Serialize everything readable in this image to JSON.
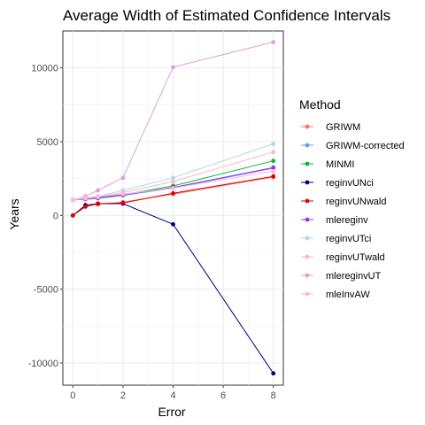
{
  "chart_data": {
    "type": "line",
    "title": "Average Width of Estimated Confidence Intervals",
    "xlabel": "Error",
    "ylabel": "Years",
    "xlim": [
      -0.4,
      8.4
    ],
    "ylim": [
      -11500,
      12500
    ],
    "xticks": [
      0,
      2,
      4,
      6,
      8
    ],
    "xtick_labels": [
      "0",
      "2",
      "4",
      "6",
      "8"
    ],
    "yticks": [
      -10000,
      -5000,
      0,
      5000,
      10000
    ],
    "ytick_labels": [
      "-10000",
      "-5000",
      "0",
      "5000",
      "10000"
    ],
    "grid": true,
    "legend_title": "Method",
    "legend_position": "right",
    "x": [
      0,
      0.5,
      1,
      2,
      4,
      8
    ],
    "series": [
      {
        "name": "GRIWM",
        "color": "#F8766D",
        "values": [
          0,
          600,
          750,
          900,
          1450,
          2600
        ]
      },
      {
        "name": "GRIWM-corrected",
        "color": "#619CFF",
        "values": [
          1050,
          1100,
          1150,
          1350,
          1850,
          3200
        ]
      },
      {
        "name": "MINMI",
        "color": "#00BA38",
        "values": [
          1050,
          1100,
          1200,
          1400,
          2000,
          3700
        ]
      },
      {
        "name": "reginvUNci",
        "color": "#000080",
        "values": [
          0,
          700,
          800,
          800,
          -600,
          -10700
        ]
      },
      {
        "name": "reginvUNwald",
        "color": "#E00000",
        "values": [
          0,
          600,
          800,
          850,
          1500,
          2650
        ]
      },
      {
        "name": "mlereginv",
        "color": "#A030E0",
        "values": [
          1050,
          1100,
          1200,
          1400,
          1900,
          3250
        ]
      },
      {
        "name": "reginvUTci",
        "color": "#ADD8E6",
        "values": [
          1050,
          1150,
          1300,
          1700,
          2550,
          4850
        ]
      },
      {
        "name": "reginvUTwald",
        "color": "#FFB6C1",
        "values": [
          1050,
          1150,
          1250,
          1550,
          2300,
          4300
        ]
      },
      {
        "name": "mlereginvUT",
        "color": "#DDA0DD",
        "values": [
          1050,
          1300,
          1700,
          2550,
          10050,
          11750
        ]
      },
      {
        "name": "mleInvAW",
        "color": "#FFB6D9",
        "values": [
          1050,
          1200,
          1300,
          1450,
          1850,
          3000
        ]
      }
    ]
  }
}
